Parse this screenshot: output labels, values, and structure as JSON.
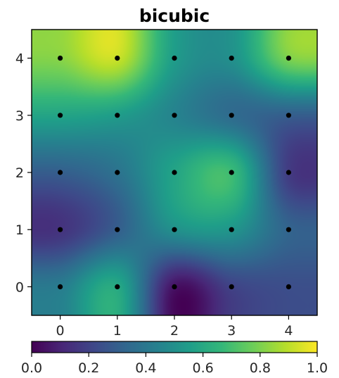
{
  "chart_data": {
    "type": "heatmap",
    "title": "bicubic",
    "interpolation": "bicubic",
    "colormap": "viridis",
    "colormap_stops": [
      "#440154",
      "#482878",
      "#3e4989",
      "#31688e",
      "#26828e",
      "#1f9e89",
      "#35b779",
      "#6ece58",
      "#b5de2b",
      "#fde725"
    ],
    "x_ticks": [
      0,
      1,
      2,
      3,
      4
    ],
    "y_ticks": [
      0,
      1,
      2,
      3,
      4
    ],
    "xlim": [
      -0.5,
      4.5
    ],
    "ylim": [
      -0.5,
      4.5
    ],
    "x_tick_labels": [
      "0",
      "1",
      "2",
      "3",
      "4"
    ],
    "y_tick_labels": [
      "0",
      "1",
      "2",
      "3",
      "4"
    ],
    "grid_values_rows_y0_to_y4": [
      [
        0.42,
        0.6,
        0.05,
        0.2,
        0.24
      ],
      [
        0.15,
        0.3,
        0.5,
        0.52,
        0.32
      ],
      [
        0.3,
        0.38,
        0.58,
        0.68,
        0.18
      ],
      [
        0.58,
        0.55,
        0.45,
        0.35,
        0.3
      ],
      [
        0.82,
        0.92,
        0.55,
        0.5,
        0.8
      ]
    ],
    "colorbar": {
      "orientation": "horizontal",
      "range": [
        0.0,
        1.0
      ],
      "tick_values": [
        0.0,
        0.2,
        0.4,
        0.6,
        0.8,
        1.0
      ],
      "tick_labels": [
        "0.0",
        "0.2",
        "0.4",
        "0.6",
        "0.8",
        "1.0"
      ]
    },
    "points_marker_color": "#000000"
  }
}
